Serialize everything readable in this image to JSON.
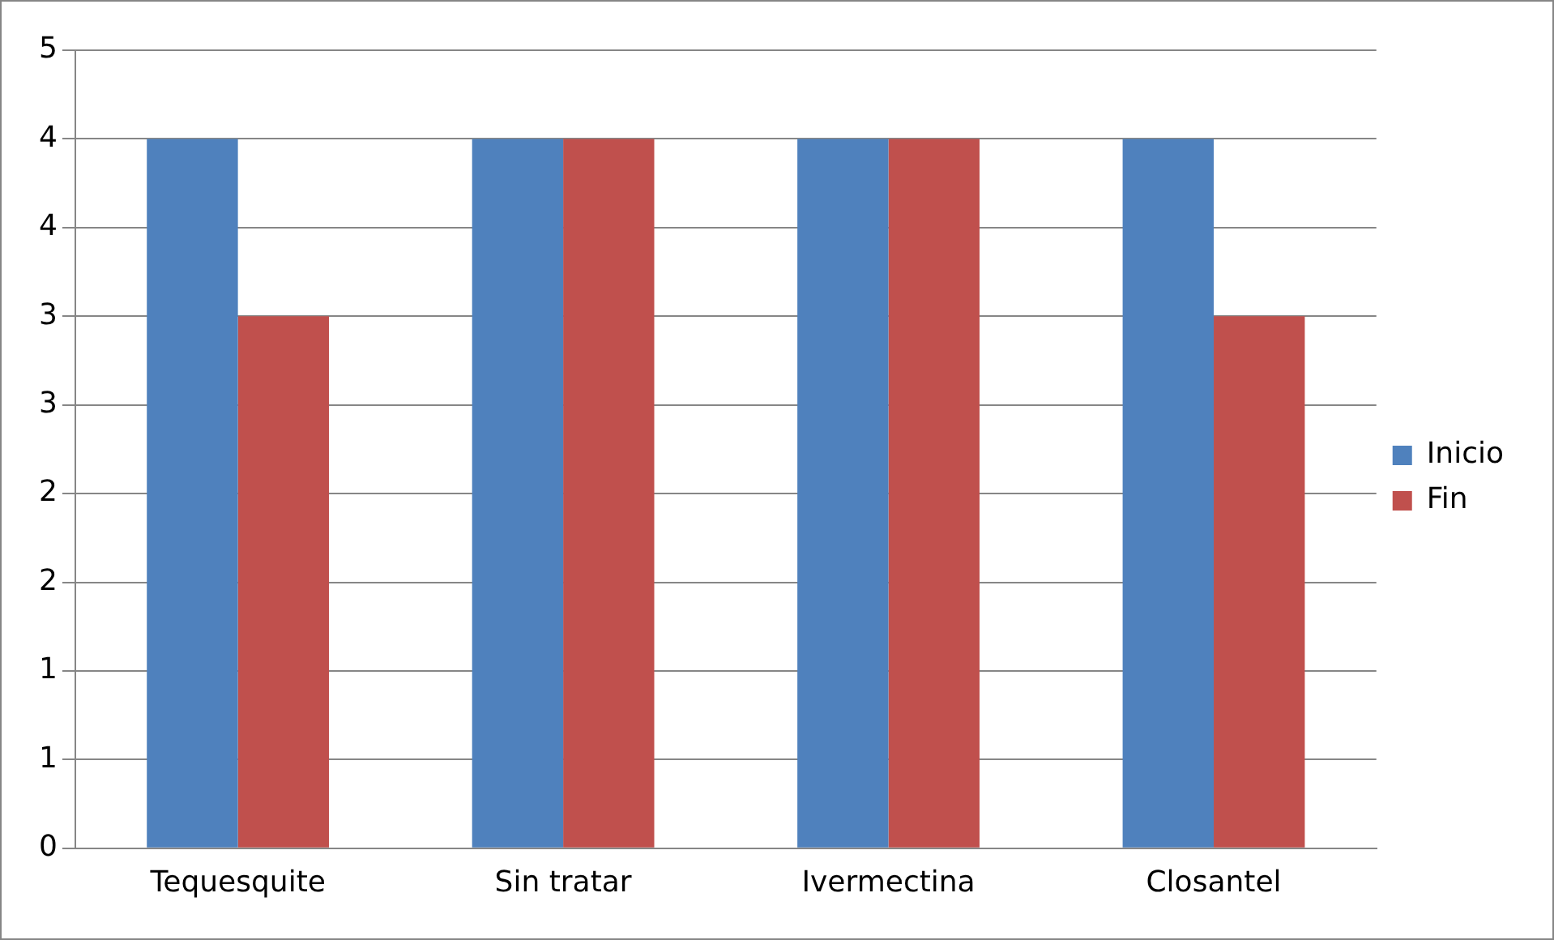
{
  "chart_data": {
    "type": "bar",
    "categories": [
      "Tequesquite",
      "Sin tratar",
      "Ivermectina",
      "Closantel"
    ],
    "series": [
      {
        "name": "Inicio",
        "color": "#4f81bd",
        "values": [
          4,
          4,
          4,
          4
        ]
      },
      {
        "name": "Fin",
        "color": "#c0504d",
        "values": [
          3,
          4,
          4,
          3
        ]
      }
    ],
    "ylim": [
      0,
      4.5
    ],
    "yticks": [
      0,
      {
        "value": 0.5,
        "label": "1"
      },
      1,
      {
        "value": 1.5,
        "label": "2"
      },
      2,
      {
        "value": 2.5,
        "label": "3"
      },
      3,
      {
        "value": 3.5,
        "label": "4"
      },
      4,
      {
        "value": 4.5,
        "label": "5"
      }
    ],
    "grid": "y",
    "legend": "right"
  }
}
